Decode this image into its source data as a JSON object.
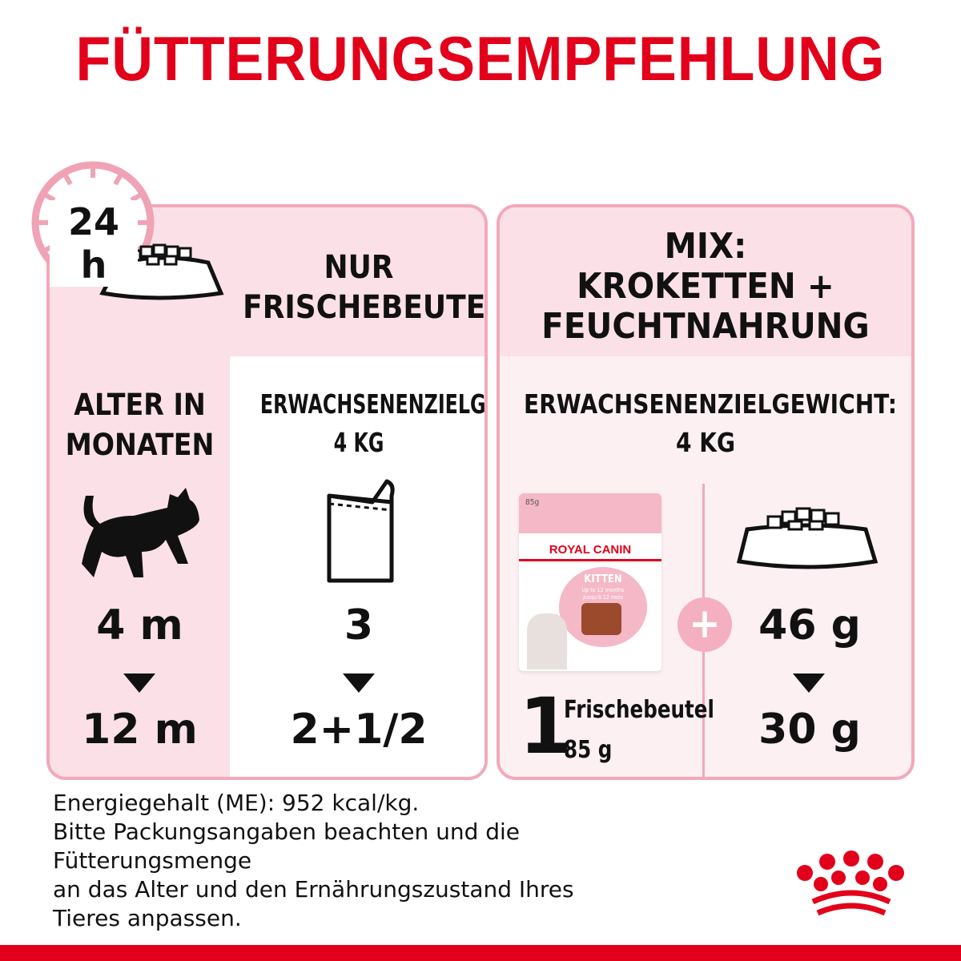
{
  "title": "FÜTTERUNGSEMPFEHLUNG",
  "clock_label": "24 h",
  "left_panel": {
    "heading_line1": "NUR",
    "heading_line2": "FRISCHEBEUTEL",
    "age_label_line1": "ALTER IN",
    "age_label_line2": "MONATEN",
    "weight_label": "ERWACHSENENZIELGEWICHT:",
    "weight_value": "4 KG",
    "age_from": "4 m",
    "age_to": "12 m",
    "pouch_from": "3",
    "pouch_to": "2+1/2"
  },
  "right_panel": {
    "heading_line1": "MIX:",
    "heading_line2": "KROKETTEN +",
    "heading_line3": "FEUCHTNAHRUNG",
    "weight_label": "ERWACHSENENZIELGEWICHT:",
    "weight_value": "4 KG",
    "pouch_count": "1",
    "pouch_label": "Frischebeutel",
    "pouch_weight": "85 g",
    "kibble_from": "46 g",
    "kibble_to": "30 g",
    "pouch_image": {
      "weight": "85g",
      "brand": "ROYAL CANIN",
      "product": "KITTEN",
      "subtitle1": "Up to 12 months",
      "subtitle2": "Jusqu'à 12 mois"
    }
  },
  "footer": {
    "lines": [
      "Energiegehalt (ME): 952 kcal/kg.",
      "Bitte Packungsangaben beachten und die",
      "Fütterungsmenge",
      "an das Alter und den Ernährungszustand Ihres",
      "Tieres anpassen."
    ]
  },
  "colors": {
    "brand_red": "#e2001a",
    "pink_border": "#f2a9b9",
    "pink_bg": "#fbe1e7",
    "light_pink": "#fdf0f3"
  }
}
